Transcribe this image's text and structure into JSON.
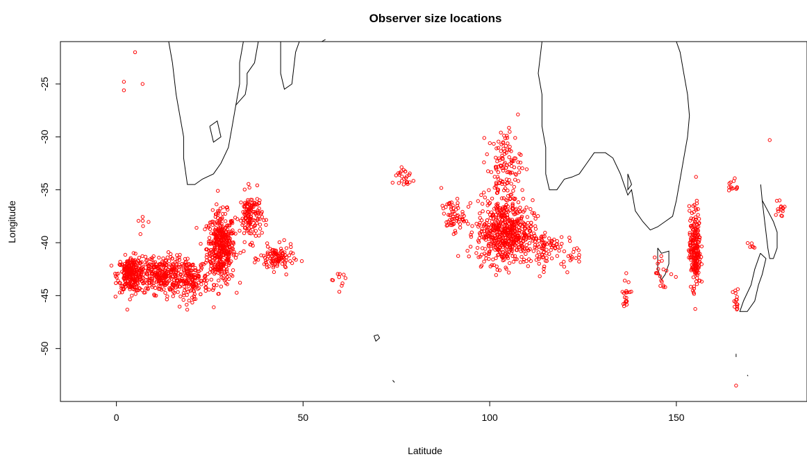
{
  "chart_data": {
    "type": "scatter",
    "title": "Observer size locations",
    "xlabel": "Latitude",
    "ylabel": "Longitude",
    "xlim": [
      -15,
      185
    ],
    "ylim": [
      -55,
      -21
    ],
    "x_ticks": [
      0,
      50,
      100,
      150
    ],
    "y_ticks": [
      -25,
      -30,
      -35,
      -40,
      -45,
      -50
    ],
    "x_tick_labels": [
      "0",
      "50",
      "100",
      "150"
    ],
    "y_tick_labels": [
      "-25",
      "-30",
      "-35",
      "-40",
      "-45",
      "-50"
    ],
    "grid": false,
    "legend": "none",
    "point_color": "#ff0000",
    "coastline_color": "#000000",
    "point_clusters": [
      {
        "cx": 28,
        "cy": -40.5,
        "sx": 2.5,
        "sy": 2.2,
        "n": 420
      },
      {
        "cx": 4,
        "cy": -43,
        "sx": 2.5,
        "sy": 1.1,
        "n": 260
      },
      {
        "cx": 12,
        "cy": -43,
        "sx": 4,
        "sy": 1.2,
        "n": 280
      },
      {
        "cx": 20,
        "cy": -43.5,
        "sx": 3,
        "sy": 1.2,
        "n": 160
      },
      {
        "cx": 36,
        "cy": -37.5,
        "sx": 2,
        "sy": 1.5,
        "n": 140
      },
      {
        "cx": 43,
        "cy": -41.5,
        "sx": 3,
        "sy": 0.8,
        "n": 110
      },
      {
        "cx": 104,
        "cy": -39,
        "sx": 5,
        "sy": 2,
        "n": 560
      },
      {
        "cx": 104,
        "cy": -33,
        "sx": 3,
        "sy": 2.5,
        "n": 130
      },
      {
        "cx": 90,
        "cy": -37.5,
        "sx": 2,
        "sy": 1,
        "n": 60
      },
      {
        "cx": 114,
        "cy": -40.5,
        "sx": 4,
        "sy": 1.2,
        "n": 90
      },
      {
        "cx": 77,
        "cy": -33.8,
        "sx": 2,
        "sy": 0.8,
        "n": 25
      },
      {
        "cx": 155,
        "cy": -40.5,
        "sx": 1,
        "sy": 2.5,
        "n": 220
      },
      {
        "cx": 146,
        "cy": -43,
        "sx": 2,
        "sy": 1.2,
        "n": 20
      },
      {
        "cx": 137,
        "cy": -44.5,
        "sx": 1,
        "sy": 1,
        "n": 18
      },
      {
        "cx": 166,
        "cy": -45.5,
        "sx": 0.6,
        "sy": 0.8,
        "n": 15
      },
      {
        "cx": 178,
        "cy": -37,
        "sx": 1,
        "sy": 1,
        "n": 14
      },
      {
        "cx": 165,
        "cy": -34.5,
        "sx": 1,
        "sy": 0.6,
        "n": 12
      },
      {
        "cx": 7,
        "cy": -38,
        "sx": 1,
        "sy": 0.8,
        "n": 6
      },
      {
        "cx": 59,
        "cy": -43.5,
        "sx": 1.5,
        "sy": 0.5,
        "n": 10
      },
      {
        "cx": 170,
        "cy": -40.2,
        "sx": 0.5,
        "sy": 0.3,
        "n": 6
      },
      {
        "cx": 122,
        "cy": -41,
        "sx": 2,
        "sy": 0.8,
        "n": 15
      }
    ],
    "isolated_points": [
      [
        5,
        -22
      ],
      [
        2,
        -24.8
      ],
      [
        2,
        -25.6
      ],
      [
        7,
        -25
      ],
      [
        166,
        -53.5
      ],
      [
        175,
        -30.3
      ],
      [
        136,
        -46
      ]
    ],
    "coastlines": [
      [
        [
          14,
          -21
        ],
        [
          15,
          -23
        ],
        [
          16,
          -26
        ],
        [
          17,
          -28
        ],
        [
          18,
          -30
        ],
        [
          18,
          -32
        ],
        [
          19,
          -34.5
        ],
        [
          21,
          -34.5
        ],
        [
          23,
          -34
        ],
        [
          26,
          -33.5
        ],
        [
          28,
          -32.5
        ],
        [
          30,
          -31
        ],
        [
          31,
          -29
        ],
        [
          32,
          -27
        ],
        [
          33,
          -25
        ],
        [
          33,
          -23
        ],
        [
          34,
          -21
        ]
      ],
      [
        [
          38,
          -21
        ],
        [
          37,
          -23
        ],
        [
          35,
          -24
        ],
        [
          35,
          -25
        ],
        [
          34.5,
          -26
        ],
        [
          32,
          -27
        ]
      ],
      [
        [
          44,
          -21
        ],
        [
          44,
          -24
        ],
        [
          45,
          -25.5
        ],
        [
          47,
          -25
        ],
        [
          48,
          -22
        ],
        [
          49,
          -21
        ]
      ],
      [
        [
          25,
          -29
        ],
        [
          27,
          -28.5
        ],
        [
          28,
          -30
        ],
        [
          26,
          -30.5
        ],
        [
          25,
          -29
        ]
      ],
      [
        [
          55,
          -21
        ],
        [
          56,
          -20.8
        ]
      ],
      [
        [
          114,
          -21
        ],
        [
          113,
          -24
        ],
        [
          114,
          -26
        ],
        [
          114,
          -29
        ],
        [
          115,
          -31
        ],
        [
          115,
          -33.5
        ],
        [
          116,
          -35
        ],
        [
          118,
          -35
        ],
        [
          120,
          -34
        ],
        [
          122,
          -33.8
        ],
        [
          124,
          -33.5
        ],
        [
          126,
          -32.5
        ],
        [
          128,
          -31.5
        ],
        [
          131,
          -31.5
        ],
        [
          133,
          -32
        ],
        [
          135,
          -33.5
        ],
        [
          136,
          -34.5
        ],
        [
          137,
          -35.5
        ],
        [
          138,
          -35
        ],
        [
          139,
          -37
        ],
        [
          141,
          -38
        ],
        [
          143,
          -38.8
        ],
        [
          145,
          -38.5
        ],
        [
          147,
          -38
        ],
        [
          149,
          -37.5
        ],
        [
          150,
          -36
        ],
        [
          151,
          -34
        ],
        [
          152,
          -32
        ],
        [
          153,
          -30
        ],
        [
          153.5,
          -28
        ],
        [
          153,
          -26
        ],
        [
          152,
          -24
        ],
        [
          151,
          -22
        ],
        [
          150,
          -21
        ]
      ],
      [
        [
          137,
          -33.5
        ],
        [
          137,
          -35
        ],
        [
          138,
          -34.5
        ],
        [
          137,
          -33.5
        ]
      ],
      [
        [
          145,
          -40.5
        ],
        [
          145,
          -42.5
        ],
        [
          146,
          -43.5
        ],
        [
          147,
          -43
        ],
        [
          148,
          -42
        ],
        [
          148,
          -40.8
        ],
        [
          146,
          -41
        ],
        [
          145,
          -40.5
        ]
      ],
      [
        [
          172.6,
          -34.5
        ],
        [
          173,
          -36
        ],
        [
          174.5,
          -37
        ],
        [
          176,
          -38
        ],
        [
          177,
          -39
        ],
        [
          177,
          -40.5
        ],
        [
          176,
          -41.5
        ],
        [
          175,
          -41.5
        ],
        [
          174.5,
          -40.5
        ],
        [
          174,
          -39
        ],
        [
          173.5,
          -37.5
        ],
        [
          173,
          -36
        ]
      ],
      [
        [
          172.5,
          -41
        ],
        [
          171,
          -42.5
        ],
        [
          170,
          -44
        ],
        [
          168,
          -45.5
        ],
        [
          167,
          -46.5
        ],
        [
          169,
          -46.5
        ],
        [
          171,
          -45.5
        ],
        [
          172,
          -44
        ],
        [
          173,
          -43
        ],
        [
          174,
          -41.5
        ],
        [
          172.5,
          -41
        ]
      ],
      [
        [
          69,
          -48.8
        ],
        [
          69.5,
          -49.3
        ],
        [
          70.5,
          -49
        ],
        [
          70,
          -48.7
        ],
        [
          69,
          -48.8
        ]
      ],
      [
        [
          74,
          -53
        ],
        [
          74.5,
          -53.2
        ]
      ],
      [
        [
          166,
          -50.5
        ],
        [
          166,
          -50.8
        ]
      ],
      [
        [
          169,
          -52.5
        ],
        [
          169.2,
          -52.6
        ]
      ]
    ]
  }
}
